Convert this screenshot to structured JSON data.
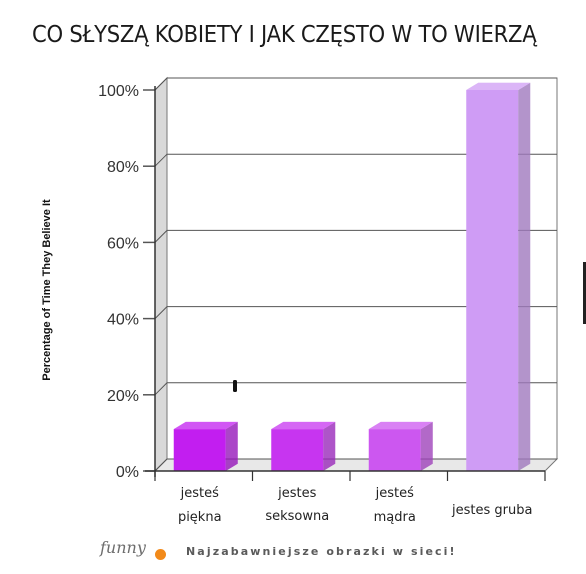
{
  "header": {
    "title": "CO SŁYSZĄ KOBIETY I JAK CZĘSTO W TO WIERZĄ"
  },
  "footer": {
    "logo_text": "funny",
    "tagline": "Najzabawniejsze obrazki w sieci!"
  },
  "chart_data": {
    "type": "bar",
    "title": "CO SŁYSZĄ KOBIETY I JAK CZĘSTO W TO WIERZĄ",
    "xlabel": "",
    "ylabel": "Percentage of Time They Believe It",
    "ylim": [
      0,
      100
    ],
    "yticks": [
      "0%",
      "20%",
      "40%",
      "60%",
      "80%",
      "100%"
    ],
    "categories": [
      [
        "jesteś",
        "piękna"
      ],
      [
        "jestes",
        "seksowna"
      ],
      [
        "jesteś",
        "mądra"
      ],
      [
        "jestes gruba"
      ]
    ],
    "values": [
      11,
      11,
      11,
      100
    ],
    "colors": [
      "#c21ef0",
      "#c735f0",
      "#cc57f0",
      "#cf9cf5"
    ],
    "grid": true,
    "legend": "none"
  }
}
